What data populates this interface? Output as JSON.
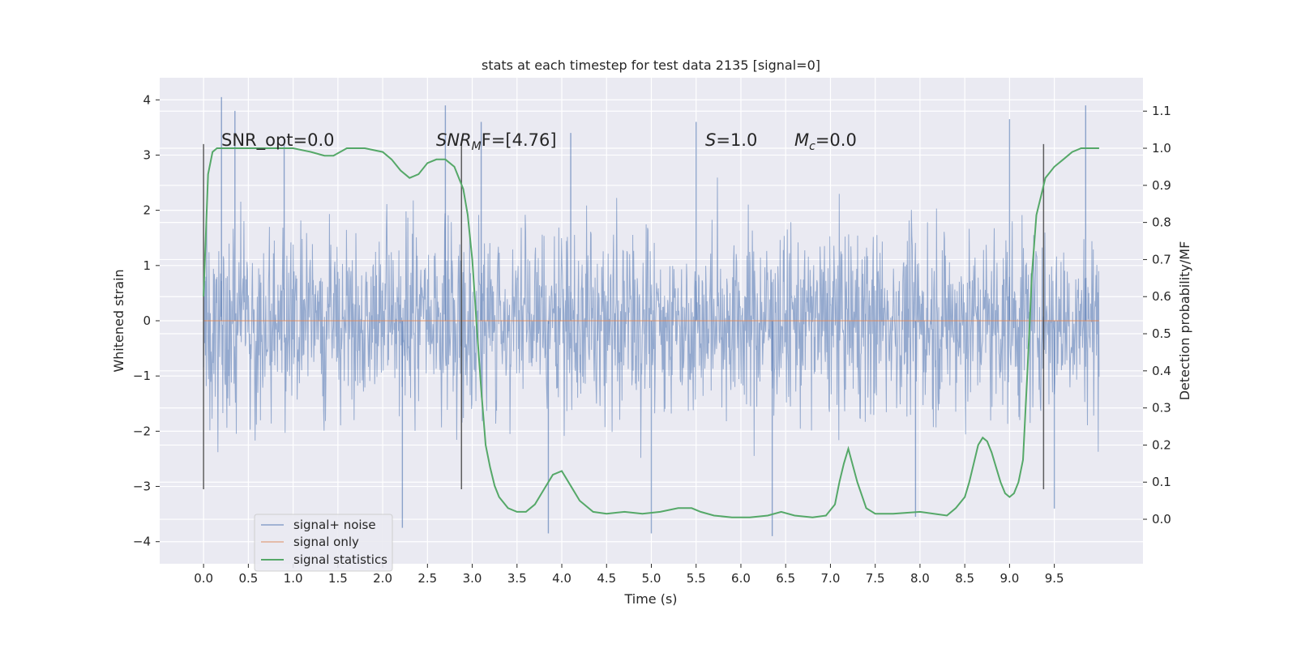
{
  "chart_data": {
    "type": "line",
    "title": "stats at each timestep for test data 2135 [signal=0]",
    "xlabel": "Time (s)",
    "ylabel": "Whitened strain",
    "y2label": "Detection probability/MF",
    "xlim": [
      -0.49,
      10.49
    ],
    "ylim": [
      -4.4,
      4.4
    ],
    "y2lim": [
      -0.12,
      1.19
    ],
    "grid": true,
    "legend_position": "lower-left",
    "x_ticks": [
      0.0,
      0.5,
      1.0,
      1.5,
      2.0,
      2.5,
      3.0,
      3.5,
      4.0,
      4.5,
      5.0,
      5.5,
      6.0,
      6.5,
      7.0,
      7.5,
      8.0,
      8.5,
      9.0,
      9.5
    ],
    "x_tick_labels": [
      "0.0",
      "0.5",
      "1.0",
      "1.5",
      "2.0",
      "2.5",
      "3.0",
      "3.5",
      "4.0",
      "4.5",
      "5.0",
      "5.5",
      "6.0",
      "6.5",
      "7.0",
      "7.5",
      "8.0",
      "8.5",
      "9.0",
      "9.5"
    ],
    "y_ticks": [
      4,
      3,
      2,
      1,
      0,
      -1,
      -2,
      -3,
      -4
    ],
    "y_tick_labels": [
      "4",
      "3",
      "2",
      "1",
      "0",
      "−1",
      "−2",
      "−3",
      "−4"
    ],
    "y2_ticks": [
      1.1,
      1.0,
      0.9,
      0.8,
      0.7,
      0.6,
      0.5,
      0.4,
      0.3,
      0.2,
      0.1,
      0.0
    ],
    "y2_tick_labels": [
      "1.1",
      "1.0",
      "0.9",
      "0.8",
      "0.7",
      "0.6",
      "0.5",
      "0.4",
      "0.3",
      "0.2",
      "0.1",
      "0.0"
    ],
    "series": [
      {
        "name": "signal+ noise",
        "color": "#4c72b0",
        "axis": "left",
        "description_x_range": [
          0.0,
          10.0
        ],
        "typical_range": [
          -2.5,
          2.5
        ],
        "peaks": [
          [
            0.2,
            4.05
          ],
          [
            0.35,
            3.8
          ],
          [
            0.9,
            3.3
          ],
          [
            2.22,
            -3.75
          ],
          [
            2.7,
            3.9
          ],
          [
            3.1,
            3.6
          ],
          [
            3.85,
            -3.85
          ],
          [
            4.1,
            3.4
          ],
          [
            5.0,
            -3.85
          ],
          [
            5.5,
            3.6
          ],
          [
            6.35,
            -3.9
          ],
          [
            7.95,
            -3.55
          ],
          [
            9.0,
            3.65
          ],
          [
            9.5,
            -3.4
          ],
          [
            9.85,
            3.9
          ]
        ]
      },
      {
        "name": "signal only",
        "color": "#dd8452",
        "axis": "left",
        "x": [
          0.0,
          10.0
        ],
        "y": [
          0.0,
          0.0
        ]
      },
      {
        "name": "signal statistics",
        "color": "#55a868",
        "axis": "right",
        "x": [
          0.0,
          0.05,
          0.1,
          0.15,
          0.25,
          0.4,
          0.6,
          0.8,
          1.0,
          1.2,
          1.35,
          1.45,
          1.6,
          1.8,
          2.0,
          2.1,
          2.2,
          2.3,
          2.4,
          2.5,
          2.6,
          2.7,
          2.8,
          2.9,
          2.95,
          3.0,
          3.05,
          3.1,
          3.15,
          3.2,
          3.25,
          3.3,
          3.4,
          3.5,
          3.6,
          3.7,
          3.8,
          3.9,
          4.0,
          4.1,
          4.2,
          4.35,
          4.5,
          4.7,
          4.9,
          5.1,
          5.3,
          5.45,
          5.55,
          5.7,
          5.9,
          6.1,
          6.3,
          6.45,
          6.6,
          6.8,
          6.95,
          7.05,
          7.1,
          7.15,
          7.2,
          7.3,
          7.4,
          7.5,
          7.7,
          8.0,
          8.3,
          8.4,
          8.5,
          8.55,
          8.6,
          8.65,
          8.7,
          8.75,
          8.8,
          8.85,
          8.9,
          8.95,
          9.0,
          9.05,
          9.1,
          9.15,
          9.2,
          9.25,
          9.3,
          9.35,
          9.4,
          9.5,
          9.6,
          9.7,
          9.8,
          9.9,
          10.0
        ],
        "y": [
          0.6,
          0.93,
          0.99,
          1.0,
          1.0,
          1.0,
          1.0,
          1.0,
          1.0,
          0.99,
          0.98,
          0.98,
          1.0,
          1.0,
          0.99,
          0.97,
          0.94,
          0.92,
          0.93,
          0.96,
          0.97,
          0.97,
          0.95,
          0.89,
          0.82,
          0.7,
          0.52,
          0.35,
          0.2,
          0.14,
          0.09,
          0.06,
          0.03,
          0.02,
          0.02,
          0.04,
          0.08,
          0.12,
          0.13,
          0.09,
          0.05,
          0.02,
          0.015,
          0.02,
          0.015,
          0.02,
          0.03,
          0.03,
          0.02,
          0.01,
          0.005,
          0.005,
          0.01,
          0.02,
          0.01,
          0.005,
          0.01,
          0.04,
          0.1,
          0.15,
          0.19,
          0.1,
          0.03,
          0.015,
          0.015,
          0.02,
          0.01,
          0.03,
          0.06,
          0.1,
          0.15,
          0.2,
          0.22,
          0.21,
          0.18,
          0.14,
          0.1,
          0.07,
          0.06,
          0.07,
          0.1,
          0.16,
          0.4,
          0.66,
          0.82,
          0.87,
          0.92,
          0.95,
          0.97,
          0.99,
          1.0,
          1.0,
          1.0
        ]
      }
    ],
    "vertical_markers": {
      "color": "#444444",
      "x": [
        0.0,
        2.88,
        9.38
      ],
      "y_range": [
        -3.05,
        3.2
      ]
    },
    "annotations": {
      "snr_opt": "SNR_opt=0.0",
      "snr_mf_main": "SNR",
      "snr_mf_sub": "M",
      "snr_mf_rest": "F=[4.76]",
      "s_main": "S",
      "s_rest": "=1.0",
      "mc_main": "M",
      "mc_sub": "c",
      "mc_rest": "=0.0"
    },
    "legend": [
      {
        "label": "signal+ noise",
        "color": "#4c72b0"
      },
      {
        "label": "signal only",
        "color": "#dd8452"
      },
      {
        "label": "signal statistics",
        "color": "#55a868"
      }
    ]
  }
}
